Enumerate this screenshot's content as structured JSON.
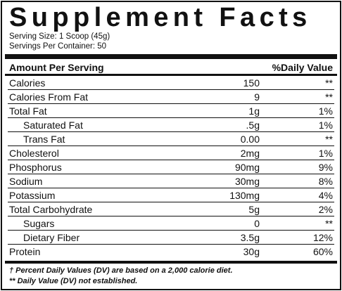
{
  "title": "Supplement Facts",
  "serving_size": "Serving Size: 1 Scoop (45g)",
  "servings_per_container": "Servings Per Container: 50",
  "header": {
    "amount_per_serving": "Amount Per Serving",
    "daily_value": "%Daily Value"
  },
  "rows": [
    {
      "name": "Calories",
      "amount": "150",
      "dv": "**",
      "sub": false
    },
    {
      "name": "Calories From Fat",
      "amount": "9",
      "dv": "**",
      "sub": false
    },
    {
      "name": "Total Fat",
      "amount": "1g",
      "dv": "1%",
      "sub": false
    },
    {
      "name": "Saturated Fat",
      "amount": ".5g",
      "dv": "1%",
      "sub": true
    },
    {
      "name": "Trans Fat",
      "amount": "0.00",
      "dv": "**",
      "sub": true
    },
    {
      "name": "Cholesterol",
      "amount": "2mg",
      "dv": "1%",
      "sub": false
    },
    {
      "name": "Phosphorus",
      "amount": "90mg",
      "dv": "9%",
      "sub": false
    },
    {
      "name": "Sodium",
      "amount": "30mg",
      "dv": "8%",
      "sub": false
    },
    {
      "name": "Potassium",
      "amount": "130mg",
      "dv": "4%",
      "sub": false
    },
    {
      "name": "Total Carbohydrate",
      "amount": "5g",
      "dv": "2%",
      "sub": false
    },
    {
      "name": "Sugars",
      "amount": "0",
      "dv": "**",
      "sub": true
    },
    {
      "name": "Dietary Fiber",
      "amount": "3.5g",
      "dv": "12%",
      "sub": true
    },
    {
      "name": "Protein",
      "amount": "30g",
      "dv": "60%",
      "sub": false
    }
  ],
  "footnotes": [
    "† Percent Daily Values (DV) are based on a 2,000 calorie diet.",
    "** Daily Value (DV) not established."
  ]
}
